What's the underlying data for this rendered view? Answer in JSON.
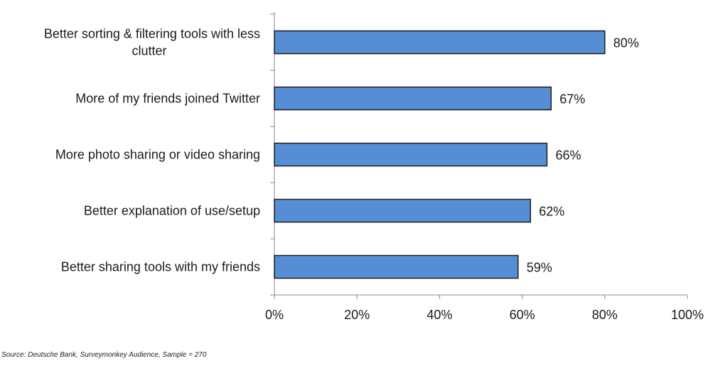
{
  "chart_data": {
    "type": "bar",
    "orientation": "horizontal",
    "categories": [
      "Better sorting & filtering tools with less clutter",
      "More of my friends joined Twitter",
      "More photo sharing or video sharing",
      "Better explanation of use/setup",
      "Better sharing tools with my friends"
    ],
    "category_lines": [
      [
        "Better sorting & filtering tools with less",
        "clutter"
      ],
      [
        "More of my friends joined Twitter"
      ],
      [
        "More photo sharing or video sharing"
      ],
      [
        "Better explanation of use/setup"
      ],
      [
        "Better sharing tools with my friends"
      ]
    ],
    "values": [
      80,
      67,
      66,
      62,
      59
    ],
    "value_labels": [
      "80%",
      "67%",
      "66%",
      "62%",
      "59%"
    ],
    "xlim": [
      0,
      100
    ],
    "x_ticks": [
      0,
      20,
      40,
      60,
      80,
      100
    ],
    "x_tick_labels": [
      "0%",
      "20%",
      "40%",
      "60%",
      "80%",
      "100%"
    ],
    "title": "",
    "xlabel": "",
    "ylabel": "",
    "grid": false,
    "legend": "none",
    "bar_color": "#558ED5",
    "bar_edge_color": "#1F1F1F"
  },
  "source_note": "Source: Deutsche Bank, Surveymonkey Audience, Sample = 270"
}
